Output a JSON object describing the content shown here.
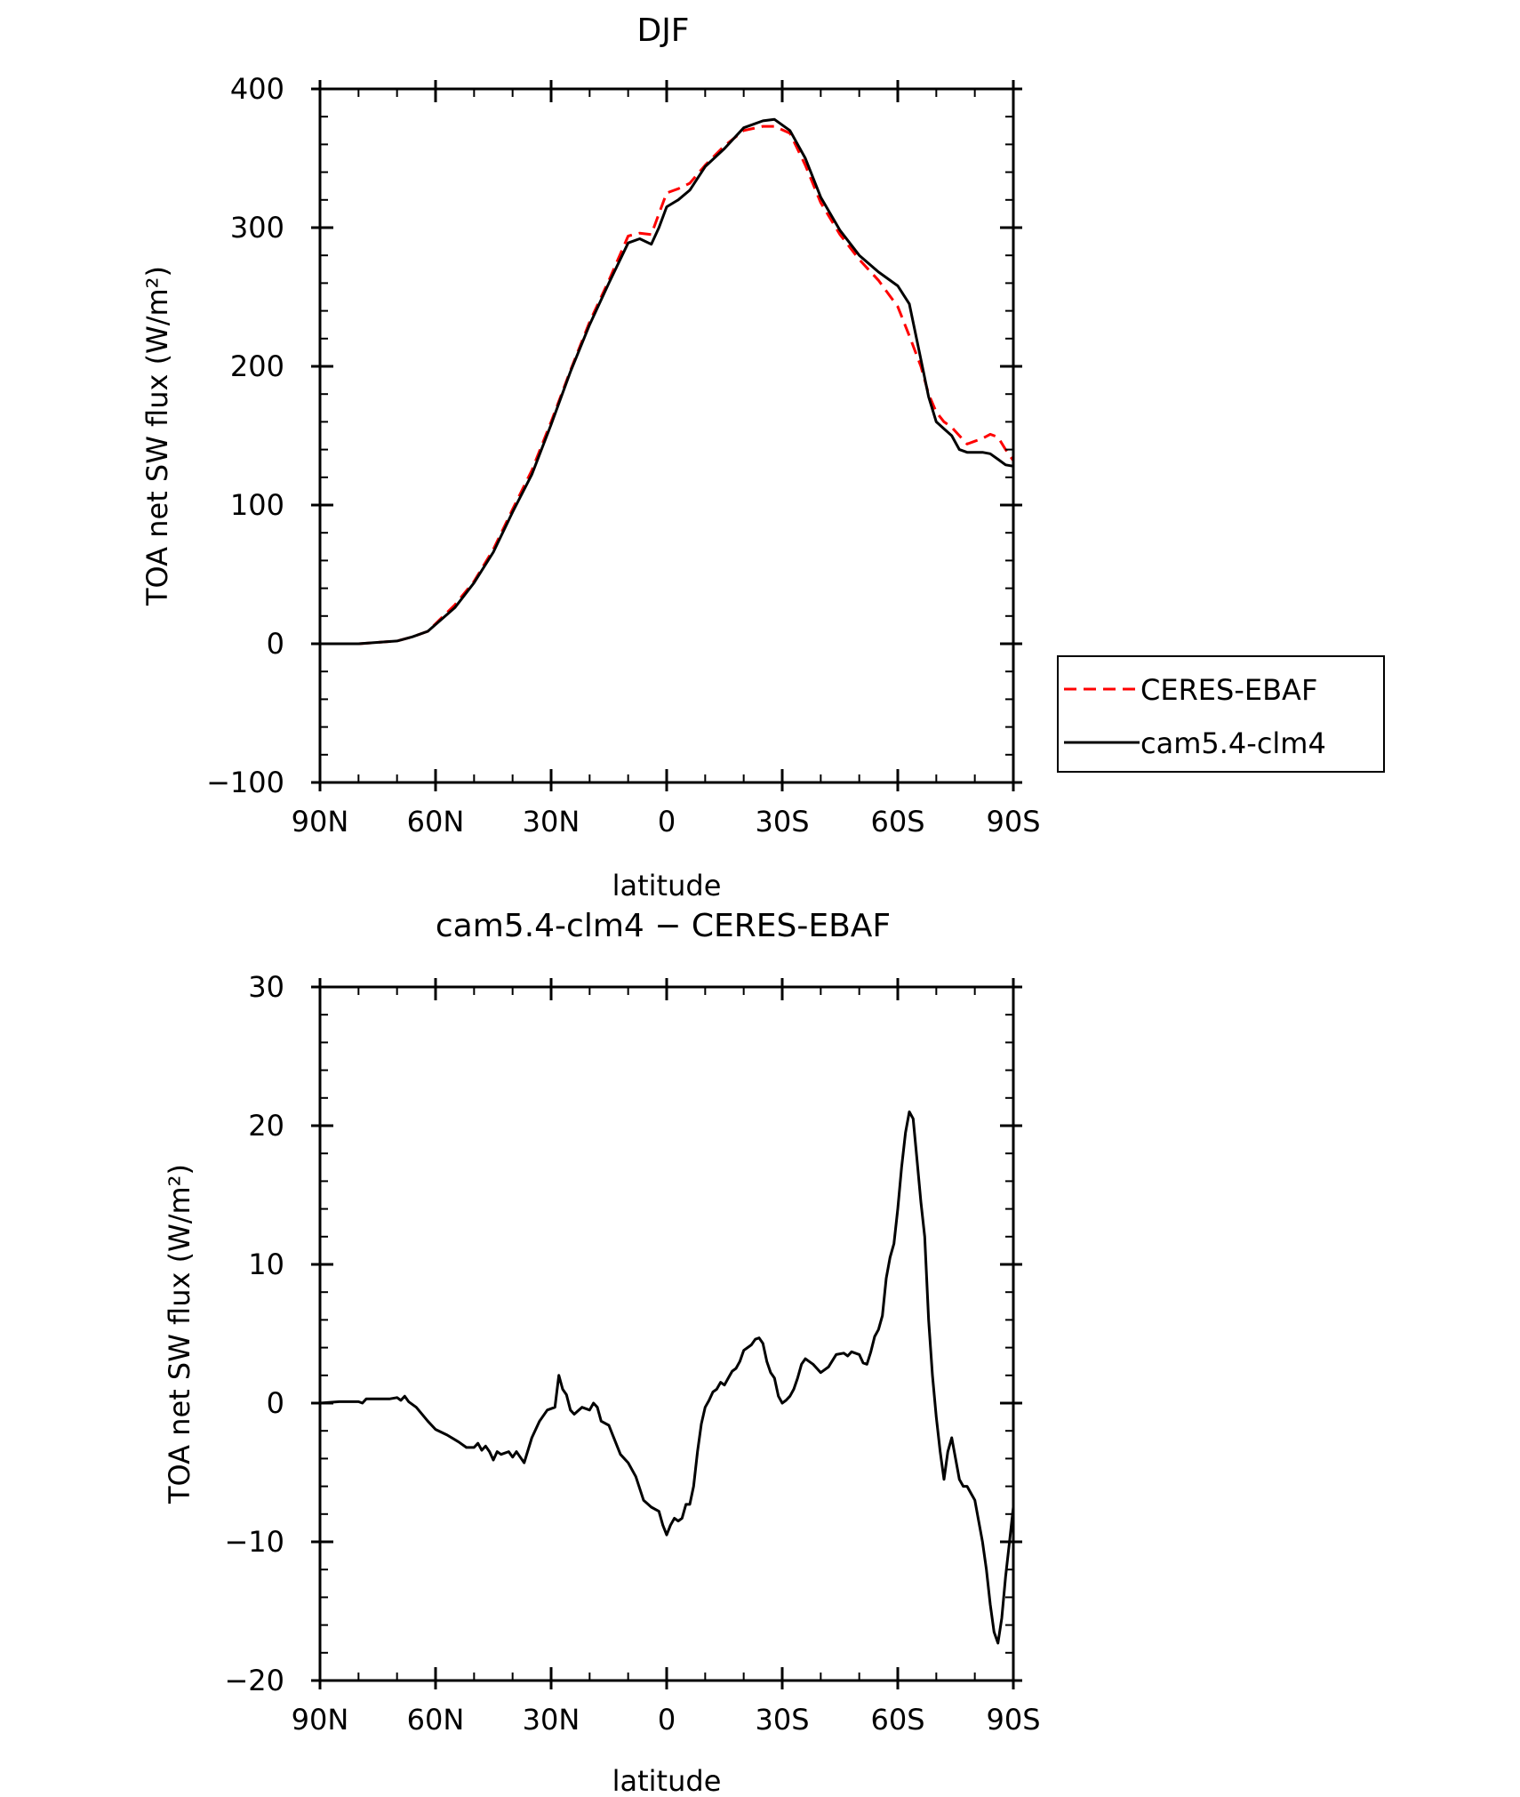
{
  "chart_data": [
    {
      "type": "line",
      "title": "DJF",
      "xlabel": "latitude",
      "ylabel": "TOA net SW flux (W/m²)",
      "ylim": [
        -100,
        400
      ],
      "yticks": [
        400,
        300,
        200,
        100,
        0,
        -100
      ],
      "xlim": [
        90,
        -90
      ],
      "x_ticks": [
        90,
        60,
        30,
        0,
        -30,
        -60,
        -90
      ],
      "x_tick_labels": [
        "90N",
        "60N",
        "30N",
        "0",
        "30S",
        "60S",
        "90S"
      ],
      "grid": false,
      "legend": {
        "placement": "right"
      },
      "series": [
        {
          "name": "CERES-EBAF",
          "color": "#ff0000",
          "style": "dashed",
          "x": [
            90,
            80,
            70,
            66,
            62,
            55,
            50,
            45,
            40,
            35,
            30,
            25,
            20,
            15,
            10,
            7,
            4,
            2,
            0,
            -3,
            -6,
            -10,
            -15,
            -20,
            -25,
            -28,
            -32,
            -36,
            -40,
            -45,
            -50,
            -55,
            -60,
            -63,
            -66,
            -68,
            -70,
            -72,
            -74,
            -76,
            -78,
            -80,
            -82,
            -84,
            -86,
            -88,
            -90
          ],
          "values": [
            0,
            0,
            2,
            5,
            9,
            28,
            45,
            68,
            97,
            125,
            160,
            197,
            232,
            262,
            294,
            296,
            295,
            310,
            325,
            328,
            332,
            345,
            359,
            370,
            373,
            373,
            368,
            345,
            318,
            295,
            277,
            262,
            243,
            222,
            200,
            180,
            167,
            160,
            156,
            150,
            144,
            146,
            148,
            151,
            149,
            140,
            132
          ]
        },
        {
          "name": "cam5.4-clm4",
          "color": "#000000",
          "style": "solid",
          "x": [
            90,
            80,
            70,
            66,
            62,
            55,
            50,
            45,
            40,
            35,
            30,
            25,
            20,
            15,
            10,
            7,
            4,
            2,
            0,
            -3,
            -6,
            -10,
            -15,
            -20,
            -25,
            -28,
            -32,
            -36,
            -40,
            -45,
            -50,
            -55,
            -60,
            -63,
            -66,
            -68,
            -70,
            -72,
            -74,
            -76,
            -78,
            -80,
            -82,
            -84,
            -86,
            -88,
            -90
          ],
          "values": [
            0,
            0,
            2,
            5,
            9,
            26,
            44,
            66,
            95,
            122,
            158,
            196,
            230,
            260,
            289,
            292,
            288,
            300,
            315,
            320,
            327,
            344,
            357,
            372,
            377,
            378,
            370,
            350,
            322,
            298,
            280,
            268,
            258,
            245,
            205,
            178,
            160,
            155,
            150,
            140,
            138,
            138,
            138,
            137,
            133,
            129,
            128
          ]
        }
      ]
    },
    {
      "type": "line",
      "title": "cam5.4-clm4 − CERES-EBAF",
      "xlabel": "latitude",
      "ylabel": "TOA net SW flux (W/m²)",
      "ylim": [
        -20,
        30
      ],
      "yticks": [
        30,
        20,
        10,
        0,
        -10,
        -20
      ],
      "xlim": [
        90,
        -90
      ],
      "x_ticks": [
        90,
        60,
        30,
        0,
        -30,
        -60,
        -90
      ],
      "x_tick_labels": [
        "90N",
        "60N",
        "30N",
        "0",
        "30S",
        "60S",
        "90S"
      ],
      "grid": false,
      "series": [
        {
          "color": "#000000",
          "style": "solid",
          "x": [
            90,
            85,
            80,
            79,
            78,
            75,
            72,
            70,
            69,
            68,
            67,
            65,
            62,
            60,
            57,
            54,
            52,
            50,
            49,
            48,
            47,
            46,
            45,
            44,
            43,
            41,
            40,
            39,
            38,
            37,
            35,
            33,
            31,
            29,
            28,
            27,
            26,
            25,
            24,
            22,
            20,
            19,
            18,
            17,
            15,
            14,
            12,
            10,
            8,
            6,
            4,
            2,
            1,
            0,
            -1,
            -2,
            -3,
            -4,
            -5,
            -6,
            -7,
            -8,
            -9,
            -10,
            -11,
            -12,
            -13,
            -14,
            -15,
            -16,
            -17,
            -18,
            -19,
            -20,
            -21,
            -22,
            -23,
            -24,
            -25,
            -26,
            -27,
            -28,
            -29,
            -30,
            -31,
            -32,
            -33,
            -34,
            -35,
            -36,
            -37,
            -38,
            -39,
            -40,
            -42,
            -44,
            -46,
            -47,
            -48,
            -50,
            -51,
            -52,
            -53,
            -54,
            -55,
            -56,
            -57,
            -58,
            -59,
            -60,
            -61,
            -62,
            -63,
            -64,
            -65,
            -66,
            -67,
            -68,
            -69,
            -70,
            -71,
            -72,
            -73,
            -74,
            -75,
            -76,
            -77,
            -78,
            -79,
            -80,
            -81,
            -82,
            -83,
            -84,
            -85,
            -86,
            -87,
            -88,
            -89,
            -90
          ],
          "values": [
            0.0,
            0.1,
            0.1,
            0.0,
            0.3,
            0.3,
            0.3,
            0.4,
            0.2,
            0.5,
            0.1,
            -0.3,
            -1.3,
            -1.9,
            -2.3,
            -2.8,
            -3.2,
            -3.2,
            -2.9,
            -3.4,
            -3.1,
            -3.5,
            -4.1,
            -3.5,
            -3.7,
            -3.5,
            -3.9,
            -3.5,
            -3.9,
            -4.3,
            -2.5,
            -1.3,
            -0.5,
            -0.3,
            2.0,
            1.0,
            0.6,
            -0.5,
            -0.8,
            -0.3,
            -0.5,
            0.0,
            -0.3,
            -1.3,
            -1.6,
            -2.3,
            -3.7,
            -4.3,
            -5.3,
            -7.0,
            -7.5,
            -7.8,
            -8.8,
            -9.5,
            -8.8,
            -8.3,
            -8.5,
            -8.3,
            -7.3,
            -7.3,
            -6.0,
            -3.5,
            -1.5,
            -0.3,
            0.2,
            0.8,
            1.0,
            1.5,
            1.3,
            1.8,
            2.3,
            2.5,
            3.0,
            3.8,
            4.0,
            4.2,
            4.6,
            4.7,
            4.3,
            3.0,
            2.2,
            1.8,
            0.5,
            0.0,
            0.2,
            0.5,
            1.0,
            1.8,
            2.8,
            3.2,
            3.0,
            2.8,
            2.5,
            2.2,
            2.6,
            3.5,
            3.6,
            3.4,
            3.7,
            3.5,
            2.9,
            2.8,
            3.7,
            4.8,
            5.3,
            6.3,
            9.0,
            10.5,
            11.5,
            14.0,
            17.0,
            19.5,
            21.0,
            20.5,
            17.5,
            14.5,
            12.0,
            6.0,
            2.0,
            -1.0,
            -3.5,
            -5.5,
            -3.5,
            -2.5,
            -4.0,
            -5.5,
            -6.0,
            -6.0,
            -6.5,
            -7.0,
            -8.5,
            -10.0,
            -12.0,
            -14.5,
            -16.5,
            -17.3,
            -15.5,
            -12.5,
            -10.0,
            -7.5
          ]
        }
      ]
    }
  ]
}
